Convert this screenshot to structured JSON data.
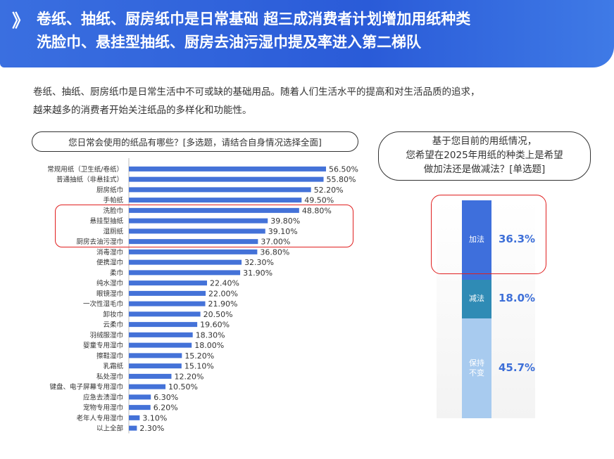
{
  "header": {
    "chevron": "》",
    "line1": "卷纸、抽纸、厨房纸巾是日常基础 超三成消费者计划增加用纸种类",
    "line2": "洗脸巾、悬挂型抽纸、厨房去油污湿巾提及率进入第二梯队"
  },
  "intro": {
    "line1": "卷纸、抽纸、厨房纸巾是日常生活中不可或缺的基础用品。随着人们生活水平的提高和对生活品质的追求，",
    "line2": "越来越多的消费者开始关注纸品的多样化和功能性。"
  },
  "chart_data": [
    {
      "type": "bar",
      "orientation": "horizontal",
      "title": "您日常会使用的纸品有哪些？[多选题，请结合自身情况选择全面]",
      "categories": [
        "常规用纸（卫生纸/卷纸）",
        "普通抽纸（非悬挂式）",
        "厨房纸巾",
        "手帕纸",
        "洗脸巾",
        "悬挂型抽纸",
        "湿厕纸",
        "厨房去油污湿巾",
        "消毒湿巾",
        "便携湿巾",
        "柔巾",
        "纯水湿巾",
        "眼镜湿巾",
        "一次性湿毛巾",
        "卸妆巾",
        "云柔巾",
        "羽绒服湿巾",
        "婴童专用湿巾",
        "擦鞋湿巾",
        "乳霜纸",
        "私处湿巾",
        "键盘、电子屏幕专用湿巾",
        "应急去渍湿巾",
        "宠物专用湿巾",
        "老年人专用湿巾",
        "以上全部"
      ],
      "values": [
        56.5,
        55.8,
        52.2,
        49.5,
        48.8,
        39.8,
        39.1,
        37.0,
        36.8,
        32.3,
        31.9,
        22.4,
        22.0,
        21.9,
        20.5,
        19.6,
        18.3,
        18.0,
        15.2,
        15.1,
        12.2,
        10.5,
        6.3,
        6.2,
        3.1,
        2.3
      ],
      "value_labels": [
        "56.50%",
        "55.80%",
        "52.20%",
        "49.50%",
        "48.80%",
        "39.80%",
        "39.10%",
        "37.00%",
        "36.80%",
        "32.30%",
        "31.90%",
        "22.40%",
        "22.00%",
        "21.90%",
        "20.50%",
        "19.60%",
        "18.30%",
        "18.00%",
        "15.20%",
        "15.10%",
        "12.20%",
        "10.50%",
        "6.30%",
        "6.20%",
        "3.10%",
        "2.30%"
      ],
      "unit": "%",
      "highlighted_categories": [
        "洗脸巾",
        "悬挂型抽纸",
        "湿厕纸",
        "厨房去油污湿巾"
      ],
      "bar_color": "#4472d8"
    },
    {
      "type": "bar",
      "orientation": "stacked-vertical",
      "title": "基于您目前的用纸情况，您希望在2025年用纸的种类上是希望做加法还是做减法？[单选题]",
      "title_lines": [
        "基于您目前的用纸情况，",
        "您希望在2025年用纸的种类上是希望",
        "做加法还是做减法？[单选题]"
      ],
      "categories": [
        "加法",
        "减法",
        "保持\n不变"
      ],
      "values": [
        36.3,
        18.0,
        45.7
      ],
      "value_labels": [
        "36.3%",
        "18.0%",
        "45.7%"
      ],
      "colors": [
        "#3e6fdc",
        "#2f8bb5",
        "#a8cbef"
      ],
      "unit": "%",
      "highlighted_categories": [
        "加法"
      ]
    }
  ]
}
